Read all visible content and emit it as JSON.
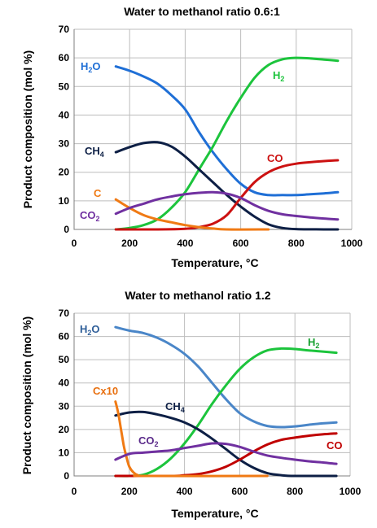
{
  "chart_data": [
    {
      "type": "line",
      "title": "Water to methanol ratio 0.6:1",
      "xlabel": "Temperature, °C",
      "ylabel": "Product composition (mol %)",
      "xlim": [
        0,
        1000
      ],
      "ylim": [
        0,
        70
      ],
      "xticks": [
        "0",
        "200",
        "400",
        "600",
        "800",
        "1000"
      ],
      "yticks": [
        "0",
        "10",
        "20",
        "30",
        "40",
        "50",
        "60",
        "70"
      ],
      "grid": true,
      "series": [
        {
          "name": "H2O",
          "color": "#1f6fd6",
          "points": [
            [
              150,
              57
            ],
            [
              200,
              55.5
            ],
            [
              250,
              53.5
            ],
            [
              300,
              51
            ],
            [
              350,
              47
            ],
            [
              400,
              42
            ],
            [
              450,
              34
            ],
            [
              500,
              27
            ],
            [
              550,
              21
            ],
            [
              600,
              16
            ],
            [
              650,
              13
            ],
            [
              700,
              12
            ],
            [
              750,
              12
            ],
            [
              800,
              12
            ],
            [
              850,
              12.3
            ],
            [
              900,
              12.6
            ],
            [
              950,
              13
            ]
          ]
        },
        {
          "name": "H2",
          "color": "#1cc43c",
          "points": [
            [
              150,
              0
            ],
            [
              200,
              0.5
            ],
            [
              250,
              1.5
            ],
            [
              300,
              3.5
            ],
            [
              350,
              7.5
            ],
            [
              400,
              13
            ],
            [
              450,
              21
            ],
            [
              500,
              29
            ],
            [
              550,
              38
            ],
            [
              600,
              46
            ],
            [
              650,
              53
            ],
            [
              700,
              57.5
            ],
            [
              750,
              59.5
            ],
            [
              800,
              60
            ],
            [
              850,
              59.8
            ],
            [
              900,
              59.4
            ],
            [
              950,
              59
            ]
          ]
        },
        {
          "name": "CH4",
          "color": "#0d1f45",
          "points": [
            [
              150,
              27
            ],
            [
              200,
              28.8
            ],
            [
              250,
              30.2
            ],
            [
              300,
              30.5
            ],
            [
              350,
              29
            ],
            [
              400,
              25.5
            ],
            [
              450,
              21
            ],
            [
              500,
              16.5
            ],
            [
              550,
              12
            ],
            [
              600,
              8
            ],
            [
              650,
              4.5
            ],
            [
              700,
              1.8
            ],
            [
              750,
              0.5
            ],
            [
              800,
              0.1
            ],
            [
              900,
              0
            ],
            [
              950,
              0
            ]
          ]
        },
        {
          "name": "CO",
          "color": "#cc1111",
          "points": [
            [
              150,
              0
            ],
            [
              300,
              0
            ],
            [
              400,
              0.2
            ],
            [
              450,
              0.8
            ],
            [
              500,
              2
            ],
            [
              550,
              5
            ],
            [
              600,
              11
            ],
            [
              650,
              16.5
            ],
            [
              700,
              20
            ],
            [
              750,
              22
            ],
            [
              800,
              23
            ],
            [
              850,
              23.5
            ],
            [
              900,
              23.9
            ],
            [
              950,
              24.2
            ]
          ]
        },
        {
          "name": "C",
          "color": "#f07a14",
          "points": [
            [
              150,
              10.5
            ],
            [
              200,
              7.5
            ],
            [
              250,
              5
            ],
            [
              300,
              3.5
            ],
            [
              350,
              2.5
            ],
            [
              400,
              1.5
            ],
            [
              450,
              0.8
            ],
            [
              500,
              0.3
            ],
            [
              550,
              0
            ],
            [
              700,
              0
            ]
          ]
        },
        {
          "name": "CO2",
          "color": "#7030a0",
          "points": [
            [
              150,
              5.5
            ],
            [
              200,
              7.5
            ],
            [
              250,
              9
            ],
            [
              300,
              10.5
            ],
            [
              350,
              11.5
            ],
            [
              400,
              12.3
            ],
            [
              450,
              12.8
            ],
            [
              500,
              13
            ],
            [
              550,
              12.5
            ],
            [
              600,
              11
            ],
            [
              650,
              8.5
            ],
            [
              700,
              6.5
            ],
            [
              750,
              5.3
            ],
            [
              800,
              4.7
            ],
            [
              850,
              4.2
            ],
            [
              900,
              3.8
            ],
            [
              950,
              3.5
            ]
          ]
        }
      ]
    },
    {
      "type": "line",
      "title": "Water to methanol ratio 1.2",
      "xlabel": "Temperature, °C",
      "ylabel": "Product composition (mol %)",
      "xlim": [
        0,
        1000
      ],
      "ylim": [
        0,
        70
      ],
      "xticks": [
        "0",
        "200",
        "400",
        "600",
        "800",
        "1000"
      ],
      "yticks": [
        "0",
        "10",
        "20",
        "30",
        "40",
        "50",
        "60",
        "70"
      ],
      "grid": true,
      "series": [
        {
          "name": "H2O",
          "color": "#4a86c8",
          "points": [
            [
              150,
              64
            ],
            [
              200,
              62.5
            ],
            [
              250,
              61.5
            ],
            [
              300,
              59.5
            ],
            [
              350,
              56.5
            ],
            [
              400,
              52.5
            ],
            [
              450,
              47
            ],
            [
              500,
              40
            ],
            [
              550,
              33
            ],
            [
              600,
              27
            ],
            [
              650,
              23.5
            ],
            [
              700,
              21.5
            ],
            [
              750,
              21
            ],
            [
              800,
              21.3
            ],
            [
              850,
              22
            ],
            [
              900,
              22.6
            ],
            [
              950,
              23
            ]
          ]
        },
        {
          "name": "H2",
          "color": "#1cc43c",
          "points": [
            [
              150,
              0
            ],
            [
              200,
              0
            ],
            [
              250,
              0.5
            ],
            [
              300,
              3
            ],
            [
              350,
              7.5
            ],
            [
              400,
              14
            ],
            [
              450,
              22
            ],
            [
              500,
              31
            ],
            [
              550,
              39
            ],
            [
              600,
              46
            ],
            [
              650,
              51
            ],
            [
              700,
              54
            ],
            [
              750,
              54.8
            ],
            [
              800,
              54.6
            ],
            [
              850,
              54
            ],
            [
              900,
              53.5
            ],
            [
              950,
              53
            ]
          ]
        },
        {
          "name": "CH4",
          "color": "#0d1f45",
          "points": [
            [
              150,
              26
            ],
            [
              200,
              27.3
            ],
            [
              250,
              27.5
            ],
            [
              300,
              26.5
            ],
            [
              350,
              25
            ],
            [
              400,
              23
            ],
            [
              450,
              20
            ],
            [
              500,
              16
            ],
            [
              550,
              11.5
            ],
            [
              600,
              7
            ],
            [
              650,
              3.5
            ],
            [
              700,
              1.2
            ],
            [
              750,
              0.3
            ],
            [
              800,
              0
            ],
            [
              950,
              0
            ]
          ]
        },
        {
          "name": "CO",
          "color": "#c00000",
          "points": [
            [
              150,
              0
            ],
            [
              350,
              0
            ],
            [
              400,
              0.3
            ],
            [
              450,
              0.8
            ],
            [
              500,
              2
            ],
            [
              550,
              4
            ],
            [
              600,
              7
            ],
            [
              650,
              10.5
            ],
            [
              700,
              13.5
            ],
            [
              750,
              15.5
            ],
            [
              800,
              16.5
            ],
            [
              850,
              17.3
            ],
            [
              900,
              17.9
            ],
            [
              950,
              18.3
            ]
          ]
        },
        {
          "name": "Cx10",
          "color": "#f07a14",
          "points": [
            [
              150,
              32
            ],
            [
              160,
              27
            ],
            [
              170,
              20
            ],
            [
              180,
              13
            ],
            [
              190,
              8
            ],
            [
              200,
              4
            ],
            [
              215,
              1.5
            ],
            [
              230,
              0.4
            ],
            [
              260,
              0
            ],
            [
              700,
              0
            ]
          ]
        },
        {
          "name": "CO2",
          "color": "#7030a0",
          "points": [
            [
              150,
              7
            ],
            [
              200,
              9.5
            ],
            [
              250,
              10
            ],
            [
              300,
              10.5
            ],
            [
              350,
              11
            ],
            [
              400,
              12
            ],
            [
              450,
              13
            ],
            [
              500,
              14
            ],
            [
              550,
              13.8
            ],
            [
              600,
              12.5
            ],
            [
              650,
              10.5
            ],
            [
              700,
              8.8
            ],
            [
              750,
              7.8
            ],
            [
              800,
              7
            ],
            [
              850,
              6.3
            ],
            [
              900,
              5.8
            ],
            [
              950,
              5.2
            ]
          ]
        }
      ]
    }
  ],
  "series_labels": [
    [
      {
        "main": "H",
        "sub": "2",
        "tail": "O",
        "color": "#1f6fd6"
      },
      {
        "main": "H",
        "sub": "2",
        "tail": "",
        "color": "#1cc43c"
      },
      {
        "main": "CH",
        "sub": "4",
        "tail": "",
        "color": "#0d1f45"
      },
      {
        "main": "CO",
        "sub": "",
        "tail": "",
        "color": "#cc1111"
      },
      {
        "main": "C",
        "sub": "",
        "tail": "",
        "color": "#f07a14"
      },
      {
        "main": "CO",
        "sub": "2",
        "tail": "",
        "color": "#7030a0"
      }
    ],
    [
      {
        "main": "H",
        "sub": "2",
        "tail": "O",
        "color": "#2f5f99"
      },
      {
        "main": "H",
        "sub": "2",
        "tail": "",
        "color": "#18a030"
      },
      {
        "main": "CH",
        "sub": "4",
        "tail": "",
        "color": "#0d1f45"
      },
      {
        "main": "CO",
        "sub": "",
        "tail": "",
        "color": "#c00000"
      },
      {
        "main": "Cx10",
        "sub": "",
        "tail": "",
        "color": "#e87010"
      },
      {
        "main": "CO",
        "sub": "2",
        "tail": "",
        "color": "#5a2a8a"
      }
    ]
  ]
}
